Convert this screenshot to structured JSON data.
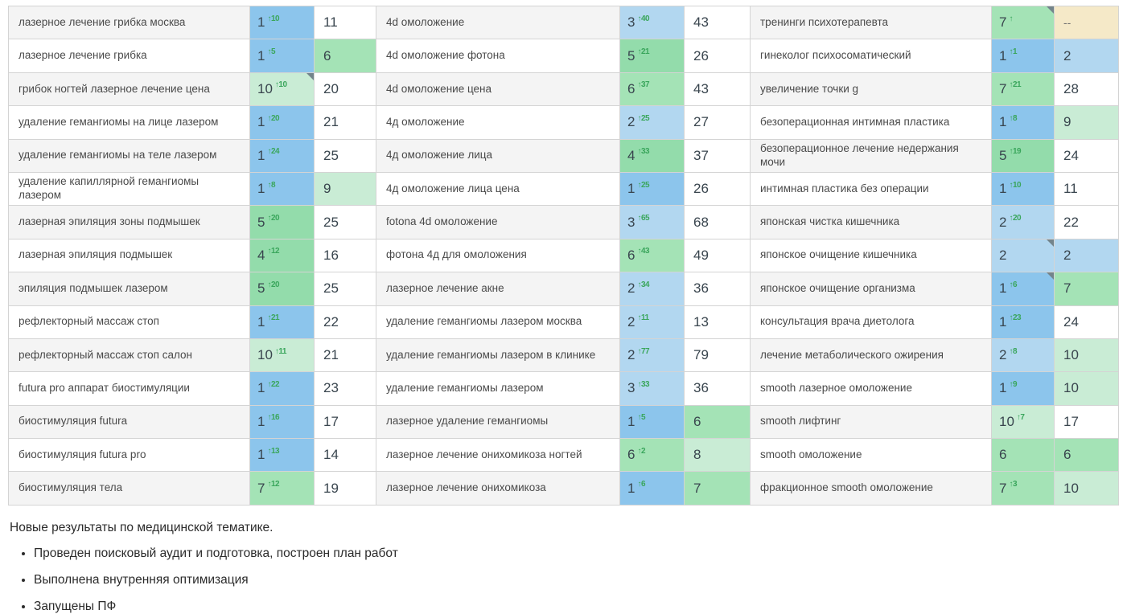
{
  "palette": {
    "pos1": "#8cc5ec",
    "pos2_3": "#b2d7f0",
    "pos4_5": "#93dcab",
    "pos6_7": "#a4e3b6",
    "pos8_10": "#c9ecd5",
    "not_found_bg": "#f5e9c8",
    "delta_green": "#3aa65c",
    "note_corner": "#73848b",
    "row_alt_bg": "#f4f4f4",
    "border": "#d4d4d4",
    "number_text": "#39454e",
    "keyword_text": "#4a4a4a"
  },
  "table": {
    "rows": [
      {
        "cells": [
          {
            "keyword": "лазерное лечение грибка москва",
            "position": "1",
            "delta": "↑10",
            "value": "11",
            "note": false
          },
          {
            "keyword": "4d омоложение",
            "position": "3",
            "delta": "↑40",
            "value": "43",
            "note": false
          },
          {
            "keyword": "тренинги психотерапевта",
            "position": "7",
            "delta": "↑",
            "value": "--",
            "note": true
          }
        ]
      },
      {
        "cells": [
          {
            "keyword": "лазерное лечение грибка",
            "position": "1",
            "delta": "↑5",
            "value": "6",
            "note": false
          },
          {
            "keyword": "4d омоложение фотона",
            "position": "5",
            "delta": "↑21",
            "value": "26",
            "note": false
          },
          {
            "keyword": "гинеколог психосоматический",
            "position": "1",
            "delta": "↑1",
            "value": "2",
            "note": false
          }
        ]
      },
      {
        "cells": [
          {
            "keyword": "грибок ногтей лазерное лечение цена",
            "position": "10",
            "delta": "↑10",
            "value": "20",
            "note": true
          },
          {
            "keyword": "4d омоложение цена",
            "position": "6",
            "delta": "↑37",
            "value": "43",
            "note": false
          },
          {
            "keyword": "увеличение точки g",
            "position": "7",
            "delta": "↑21",
            "value": "28",
            "note": false
          }
        ]
      },
      {
        "cells": [
          {
            "keyword": "удаление гемангиомы на лице лазером",
            "position": "1",
            "delta": "↑20",
            "value": "21",
            "note": false
          },
          {
            "keyword": "4д омоложение",
            "position": "2",
            "delta": "↑25",
            "value": "27",
            "note": false
          },
          {
            "keyword": "безоперационная интимная пластика",
            "position": "1",
            "delta": "↑8",
            "value": "9",
            "note": false
          }
        ]
      },
      {
        "cells": [
          {
            "keyword": "удаление гемангиомы на теле лазером",
            "position": "1",
            "delta": "↑24",
            "value": "25",
            "note": false
          },
          {
            "keyword": "4д омоложение лица",
            "position": "4",
            "delta": "↑33",
            "value": "37",
            "note": false
          },
          {
            "keyword": "безоперационное лечение недержания мочи",
            "position": "5",
            "delta": "↑19",
            "value": "24",
            "note": false
          }
        ]
      },
      {
        "cells": [
          {
            "keyword": "удаление капиллярной гемангиомы лазером",
            "position": "1",
            "delta": "↑8",
            "value": "9",
            "note": false
          },
          {
            "keyword": "4д омоложение лица цена",
            "position": "1",
            "delta": "↑25",
            "value": "26",
            "note": false
          },
          {
            "keyword": "интимная пластика без операции",
            "position": "1",
            "delta": "↑10",
            "value": "11",
            "note": false
          }
        ]
      },
      {
        "cells": [
          {
            "keyword": "лазерная эпиляция зоны подмышек",
            "position": "5",
            "delta": "↑20",
            "value": "25",
            "note": false
          },
          {
            "keyword": "fotona 4d омоложение",
            "position": "3",
            "delta": "↑65",
            "value": "68",
            "note": false
          },
          {
            "keyword": "японская чистка кишечника",
            "position": "2",
            "delta": "↑20",
            "value": "22",
            "note": false
          }
        ]
      },
      {
        "cells": [
          {
            "keyword": "лазерная эпиляция подмышек",
            "position": "4",
            "delta": "↑12",
            "value": "16",
            "note": false
          },
          {
            "keyword": "фотона 4д для омоложения",
            "position": "6",
            "delta": "↑43",
            "value": "49",
            "note": false
          },
          {
            "keyword": "японское очищение кишечника",
            "position": "2",
            "delta": "",
            "value": "2",
            "note": true
          }
        ]
      },
      {
        "cells": [
          {
            "keyword": "эпиляция подмышек лазером",
            "position": "5",
            "delta": "↑20",
            "value": "25",
            "note": false
          },
          {
            "keyword": "лазерное лечение акне",
            "position": "2",
            "delta": "↑34",
            "value": "36",
            "note": false
          },
          {
            "keyword": "японское очищение организма",
            "position": "1",
            "delta": "↑6",
            "value": "7",
            "note": true
          }
        ]
      },
      {
        "cells": [
          {
            "keyword": "рефлекторный массаж стоп",
            "position": "1",
            "delta": "↑21",
            "value": "22",
            "note": false
          },
          {
            "keyword": "удаление гемангиомы лазером москва",
            "position": "2",
            "delta": "↑11",
            "value": "13",
            "note": false
          },
          {
            "keyword": "консультация врача диетолога",
            "position": "1",
            "delta": "↑23",
            "value": "24",
            "note": false
          }
        ]
      },
      {
        "cells": [
          {
            "keyword": "рефлекторный массаж стоп салон",
            "position": "10",
            "delta": "↑11",
            "value": "21",
            "note": false
          },
          {
            "keyword": "удаление гемангиомы лазером в клинике",
            "position": "2",
            "delta": "↑77",
            "value": "79",
            "note": false
          },
          {
            "keyword": "лечение метаболического ожирения",
            "position": "2",
            "delta": "↑8",
            "value": "10",
            "note": false
          }
        ]
      },
      {
        "cells": [
          {
            "keyword": "futura pro аппарат биостимуляции",
            "position": "1",
            "delta": "↑22",
            "value": "23",
            "note": false
          },
          {
            "keyword": "удаление гемангиомы лазером",
            "position": "3",
            "delta": "↑33",
            "value": "36",
            "note": false
          },
          {
            "keyword": "smooth лазерное омоложение",
            "position": "1",
            "delta": "↑9",
            "value": "10",
            "note": false
          }
        ]
      },
      {
        "cells": [
          {
            "keyword": "биостимуляция futura",
            "position": "1",
            "delta": "↑16",
            "value": "17",
            "note": false
          },
          {
            "keyword": "лазерное удаление гемангиомы",
            "position": "1",
            "delta": "↑5",
            "value": "6",
            "note": false
          },
          {
            "keyword": "smooth лифтинг",
            "position": "10",
            "delta": "↑7",
            "value": "17",
            "note": false
          }
        ]
      },
      {
        "cells": [
          {
            "keyword": "биостимуляция futura pro",
            "position": "1",
            "delta": "↑13",
            "value": "14",
            "note": false
          },
          {
            "keyword": "лазерное лечение онихомикоза ногтей",
            "position": "6",
            "delta": "↑2",
            "value": "8",
            "note": false
          },
          {
            "keyword": "smooth омоложение",
            "position": "6",
            "delta": "",
            "value": "6",
            "note": false
          }
        ]
      },
      {
        "cells": [
          {
            "keyword": "биостимуляция тела",
            "position": "7",
            "delta": "↑12",
            "value": "19",
            "note": false
          },
          {
            "keyword": "лазерное лечение онихомикоза",
            "position": "1",
            "delta": "↑6",
            "value": "7",
            "note": false
          },
          {
            "keyword": "фракционное smooth омоложение",
            "position": "7",
            "delta": "↑3",
            "value": "10",
            "note": false
          }
        ]
      }
    ]
  },
  "footer": {
    "title": "Новые результаты по медицинской тематике.",
    "bullets": [
      "Проведен поисковый аудит и подготовка, построен план работ",
      "Выполнена внутренняя оптимизация",
      "Запущены ПФ"
    ]
  }
}
